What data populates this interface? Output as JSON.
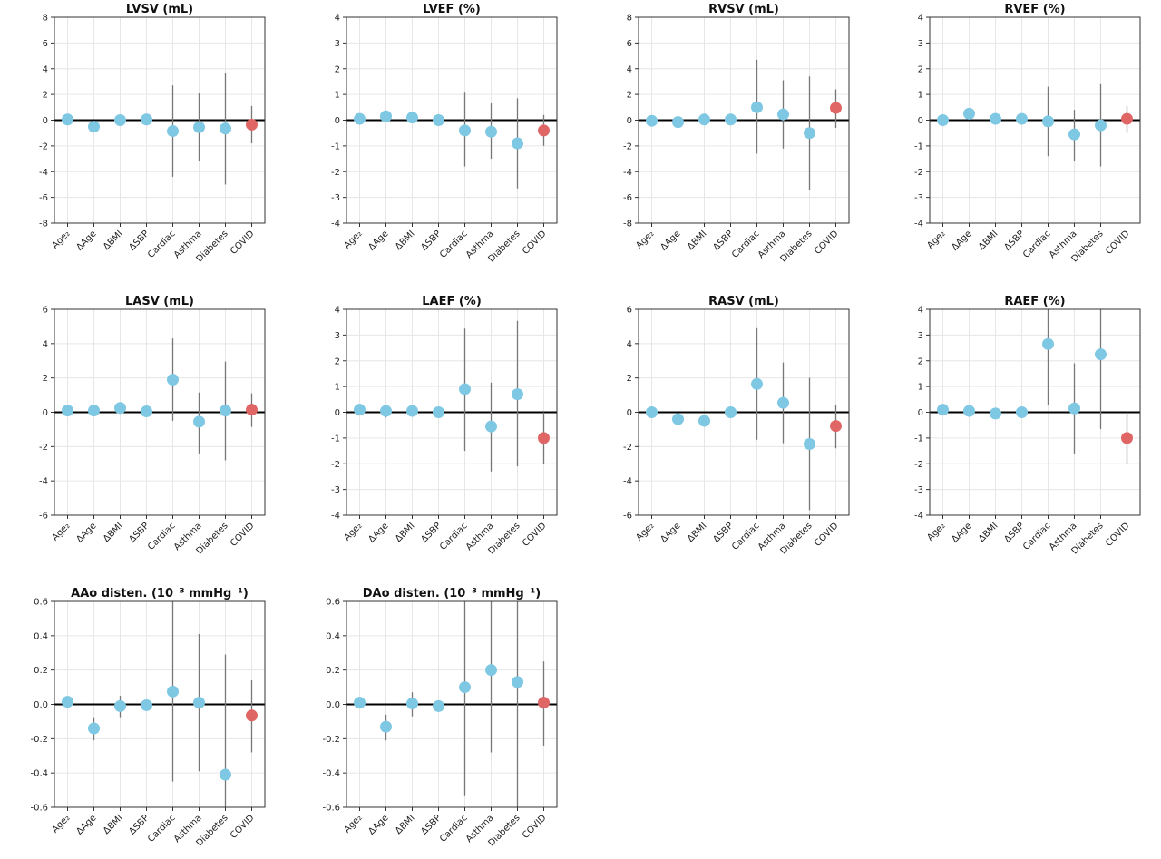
{
  "colors": {
    "covariate_marker": "#7ec8e3",
    "covid_marker": "#e06666",
    "error_bar": "#777777",
    "zero_line": "#000000",
    "grid": "#e6e6e6"
  },
  "chart_data": [
    {
      "type": "scatter",
      "title": "LVSV (mL)",
      "ylim": [
        -8,
        8
      ],
      "yticks": [
        "-8",
        "-6",
        "-4",
        "-2",
        "0",
        "2",
        "4",
        "6",
        "8"
      ],
      "categories": [
        "Age₂",
        "ΔAge",
        "ΔBMI",
        "ΔSBP",
        "Cardiac",
        "Asthma",
        "Diabetes",
        "COVID"
      ],
      "values": [
        0.05,
        -0.5,
        0.0,
        0.05,
        -0.85,
        -0.55,
        -0.65,
        -0.35
      ],
      "ci_low": [
        0.05,
        -0.5,
        0.0,
        0.05,
        -4.4,
        -3.2,
        -5.0,
        -1.8
      ],
      "ci_high": [
        0.05,
        -0.5,
        0.0,
        0.05,
        2.7,
        2.1,
        3.7,
        1.1
      ],
      "highlight_index": 7,
      "grid": true
    },
    {
      "type": "scatter",
      "title": "LVEF (%)",
      "ylim": [
        -4,
        4
      ],
      "yticks": [
        "-4",
        "-3",
        "-2",
        "-1",
        "0",
        "1",
        "2",
        "3",
        "4"
      ],
      "categories": [
        "Age₂",
        "ΔAge",
        "ΔBMI",
        "ΔSBP",
        "Cardiac",
        "Asthma",
        "Diabetes",
        "COVID"
      ],
      "values": [
        0.05,
        0.15,
        0.1,
        0.0,
        -0.4,
        -0.45,
        -0.9,
        -0.4
      ],
      "ci_low": [
        0.05,
        0.15,
        0.1,
        0.0,
        -1.8,
        -1.5,
        -2.65,
        -1.0
      ],
      "ci_high": [
        0.05,
        0.15,
        0.1,
        0.0,
        1.1,
        0.65,
        0.85,
        0.2
      ],
      "highlight_index": 7,
      "grid": true
    },
    {
      "type": "scatter",
      "title": "RVSV (mL)",
      "ylim": [
        -8,
        8
      ],
      "yticks": [
        "-8",
        "-6",
        "-4",
        "-2",
        "0",
        "2",
        "4",
        "6",
        "8"
      ],
      "categories": [
        "Age₂",
        "ΔAge",
        "ΔBMI",
        "ΔSBP",
        "Cardiac",
        "Asthma",
        "Diabetes",
        "COVID"
      ],
      "values": [
        -0.05,
        -0.15,
        0.05,
        0.05,
        1.0,
        0.45,
        -1.0,
        0.95
      ],
      "ci_low": [
        -0.05,
        -0.15,
        0.05,
        0.05,
        -2.6,
        -2.2,
        -5.4,
        -0.6
      ],
      "ci_high": [
        -0.05,
        -0.15,
        0.05,
        0.05,
        4.7,
        3.1,
        3.4,
        2.4
      ],
      "highlight_index": 7,
      "grid": true
    },
    {
      "type": "scatter",
      "title": "RVEF (%)",
      "ylim": [
        -4,
        4
      ],
      "yticks": [
        "-4",
        "-3",
        "-2",
        "-1",
        "0",
        "1",
        "2",
        "3",
        "4"
      ],
      "categories": [
        "Age₂",
        "ΔAge",
        "ΔBMI",
        "ΔSBP",
        "Cardiac",
        "Asthma",
        "Diabetes",
        "COVID"
      ],
      "values": [
        0.0,
        0.25,
        0.05,
        0.05,
        -0.05,
        -0.55,
        -0.2,
        0.05
      ],
      "ci_low": [
        0.0,
        0.25,
        0.05,
        0.05,
        -1.4,
        -1.6,
        -1.8,
        -0.5
      ],
      "ci_high": [
        0.0,
        0.25,
        0.05,
        0.05,
        1.3,
        0.4,
        1.4,
        0.55
      ],
      "highlight_index": 7,
      "grid": true
    },
    {
      "type": "scatter",
      "title": "LASV (mL)",
      "ylim": [
        -6,
        6
      ],
      "yticks": [
        "-6",
        "-4",
        "-2",
        "0",
        "2",
        "4",
        "6"
      ],
      "categories": [
        "Age₂",
        "ΔAge",
        "ΔBMI",
        "ΔSBP",
        "Cardiac",
        "Asthma",
        "Diabetes",
        "COVID"
      ],
      "values": [
        0.1,
        0.1,
        0.25,
        0.05,
        1.9,
        -0.55,
        0.1,
        0.15
      ],
      "ci_low": [
        0.1,
        0.1,
        0.25,
        0.05,
        -0.5,
        -2.4,
        -2.8,
        -0.85
      ],
      "ci_high": [
        0.1,
        0.1,
        0.25,
        0.05,
        4.3,
        1.15,
        2.95,
        1.1
      ],
      "highlight_index": 7,
      "grid": true
    },
    {
      "type": "scatter",
      "title": "LAEF (%)",
      "ylim": [
        -4,
        4
      ],
      "yticks": [
        "-4",
        "-3",
        "-2",
        "-1",
        "0",
        "1",
        "2",
        "3",
        "4"
      ],
      "categories": [
        "Age₂",
        "ΔAge",
        "ΔBMI",
        "ΔSBP",
        "Cardiac",
        "Asthma",
        "Diabetes",
        "COVID"
      ],
      "values": [
        0.1,
        0.05,
        0.05,
        0.0,
        0.9,
        -0.55,
        0.7,
        -1.0
      ],
      "ci_low": [
        0.1,
        -0.2,
        -0.1,
        0.0,
        -1.5,
        -2.3,
        -2.1,
        -2.0
      ],
      "ci_high": [
        0.1,
        0.3,
        0.2,
        0.0,
        3.25,
        1.15,
        3.55,
        0.0
      ],
      "highlight_index": 7,
      "grid": true
    },
    {
      "type": "scatter",
      "title": "RASV (mL)",
      "ylim": [
        -6,
        6
      ],
      "yticks": [
        "-6",
        "-4",
        "-2",
        "0",
        "2",
        "4",
        "6"
      ],
      "categories": [
        "Age₂",
        "ΔAge",
        "ΔBMI",
        "ΔSBP",
        "Cardiac",
        "Asthma",
        "Diabetes",
        "COVID"
      ],
      "values": [
        0.0,
        -0.4,
        -0.5,
        0.0,
        1.65,
        0.55,
        -1.85,
        -0.8
      ],
      "ci_low": [
        0.0,
        -0.4,
        -0.5,
        0.0,
        -1.6,
        -1.8,
        -5.7,
        -2.1
      ],
      "ci_high": [
        0.0,
        -0.4,
        -0.5,
        0.0,
        4.9,
        2.9,
        2.0,
        0.45
      ],
      "highlight_index": 7,
      "grid": true
    },
    {
      "type": "scatter",
      "title": "RAEF (%)",
      "ylim": [
        -4,
        4
      ],
      "yticks": [
        "-4",
        "-3",
        "-2",
        "-1",
        "0",
        "1",
        "2",
        "3",
        "4"
      ],
      "categories": [
        "Age₂",
        "ΔAge",
        "ΔBMI",
        "ΔSBP",
        "Cardiac",
        "Asthma",
        "Diabetes",
        "COVID"
      ],
      "values": [
        0.1,
        0.05,
        -0.05,
        0.0,
        2.65,
        0.15,
        2.25,
        -1.0
      ],
      "ci_low": [
        0.1,
        -0.15,
        -0.2,
        0.0,
        0.3,
        -1.6,
        -0.65,
        -2.0
      ],
      "ci_high": [
        0.1,
        0.25,
        0.1,
        0.0,
        4.0,
        1.9,
        4.0,
        0.0
      ],
      "highlight_index": 7,
      "grid": true
    },
    {
      "type": "scatter",
      "title": "AAo disten. (10⁻³ mmHg⁻¹)",
      "ylim": [
        -0.6,
        0.6
      ],
      "yticks": [
        "-0.6",
        "-0.4",
        "-0.2",
        "0.0",
        "0.2",
        "0.4",
        "0.6"
      ],
      "categories": [
        "Age₂",
        "ΔAge",
        "ΔBMI",
        "ΔSBP",
        "Cardiac",
        "Asthma",
        "Diabetes",
        "COVID"
      ],
      "values": [
        0.015,
        -0.14,
        -0.01,
        -0.005,
        0.075,
        0.01,
        -0.41,
        -0.065
      ],
      "ci_low": [
        0.015,
        -0.21,
        -0.08,
        -0.005,
        -0.45,
        -0.39,
        -0.6,
        -0.28
      ],
      "ci_high": [
        0.015,
        -0.08,
        0.05,
        -0.005,
        0.6,
        0.41,
        0.29,
        0.14
      ],
      "highlight_index": 7,
      "grid": true
    },
    {
      "type": "scatter",
      "title": "DAo disten. (10⁻³ mmHg⁻¹)",
      "ylim": [
        -0.6,
        0.6
      ],
      "yticks": [
        "-0.6",
        "-0.4",
        "-0.2",
        "0.0",
        "0.2",
        "0.4",
        "0.6"
      ],
      "categories": [
        "Age₂",
        "ΔAge",
        "ΔBMI",
        "ΔSBP",
        "Cardiac",
        "Asthma",
        "Diabetes",
        "COVID"
      ],
      "values": [
        0.01,
        -0.13,
        0.005,
        -0.01,
        0.1,
        0.2,
        0.13,
        0.01
      ],
      "ci_low": [
        0.01,
        -0.21,
        -0.07,
        -0.01,
        -0.53,
        -0.28,
        -0.6,
        -0.24
      ],
      "ci_high": [
        0.01,
        -0.06,
        0.07,
        -0.01,
        0.6,
        0.6,
        0.6,
        0.25
      ],
      "highlight_index": 7,
      "grid": true
    }
  ]
}
